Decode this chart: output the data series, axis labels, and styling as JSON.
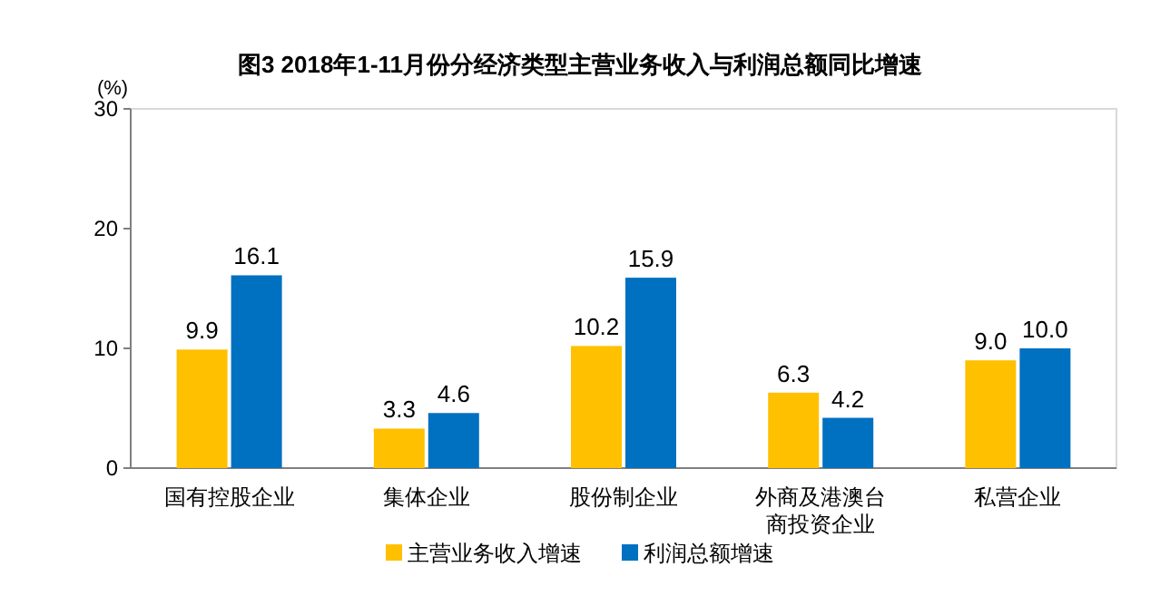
{
  "chart_data": {
    "type": "bar",
    "title": "图3 2018年1-11月份分经济类型主营业务收入与利润总额同比增速",
    "ylabel": "(%)",
    "categories": [
      "国有控股企业",
      "集体企业",
      "股份制企业",
      "外商及港澳台商投资企业",
      "私营企业"
    ],
    "series": [
      {
        "name": "主营业务收入增速",
        "color": "#ffc000",
        "values": [
          9.9,
          3.3,
          10.2,
          6.3,
          9.0
        ],
        "value_labels": [
          "9.9",
          "3.3",
          "10.2",
          "6.3",
          "9.0"
        ]
      },
      {
        "name": "利润总额增速",
        "color": "#0070c0",
        "values": [
          16.1,
          4.6,
          15.9,
          4.2,
          10.0
        ],
        "value_labels": [
          "16.1",
          "4.6",
          "15.9",
          "4.2",
          "10.0"
        ]
      }
    ],
    "ylim": [
      0,
      30
    ],
    "yticks": [
      0,
      10,
      20,
      30
    ],
    "legend": "bottom"
  }
}
